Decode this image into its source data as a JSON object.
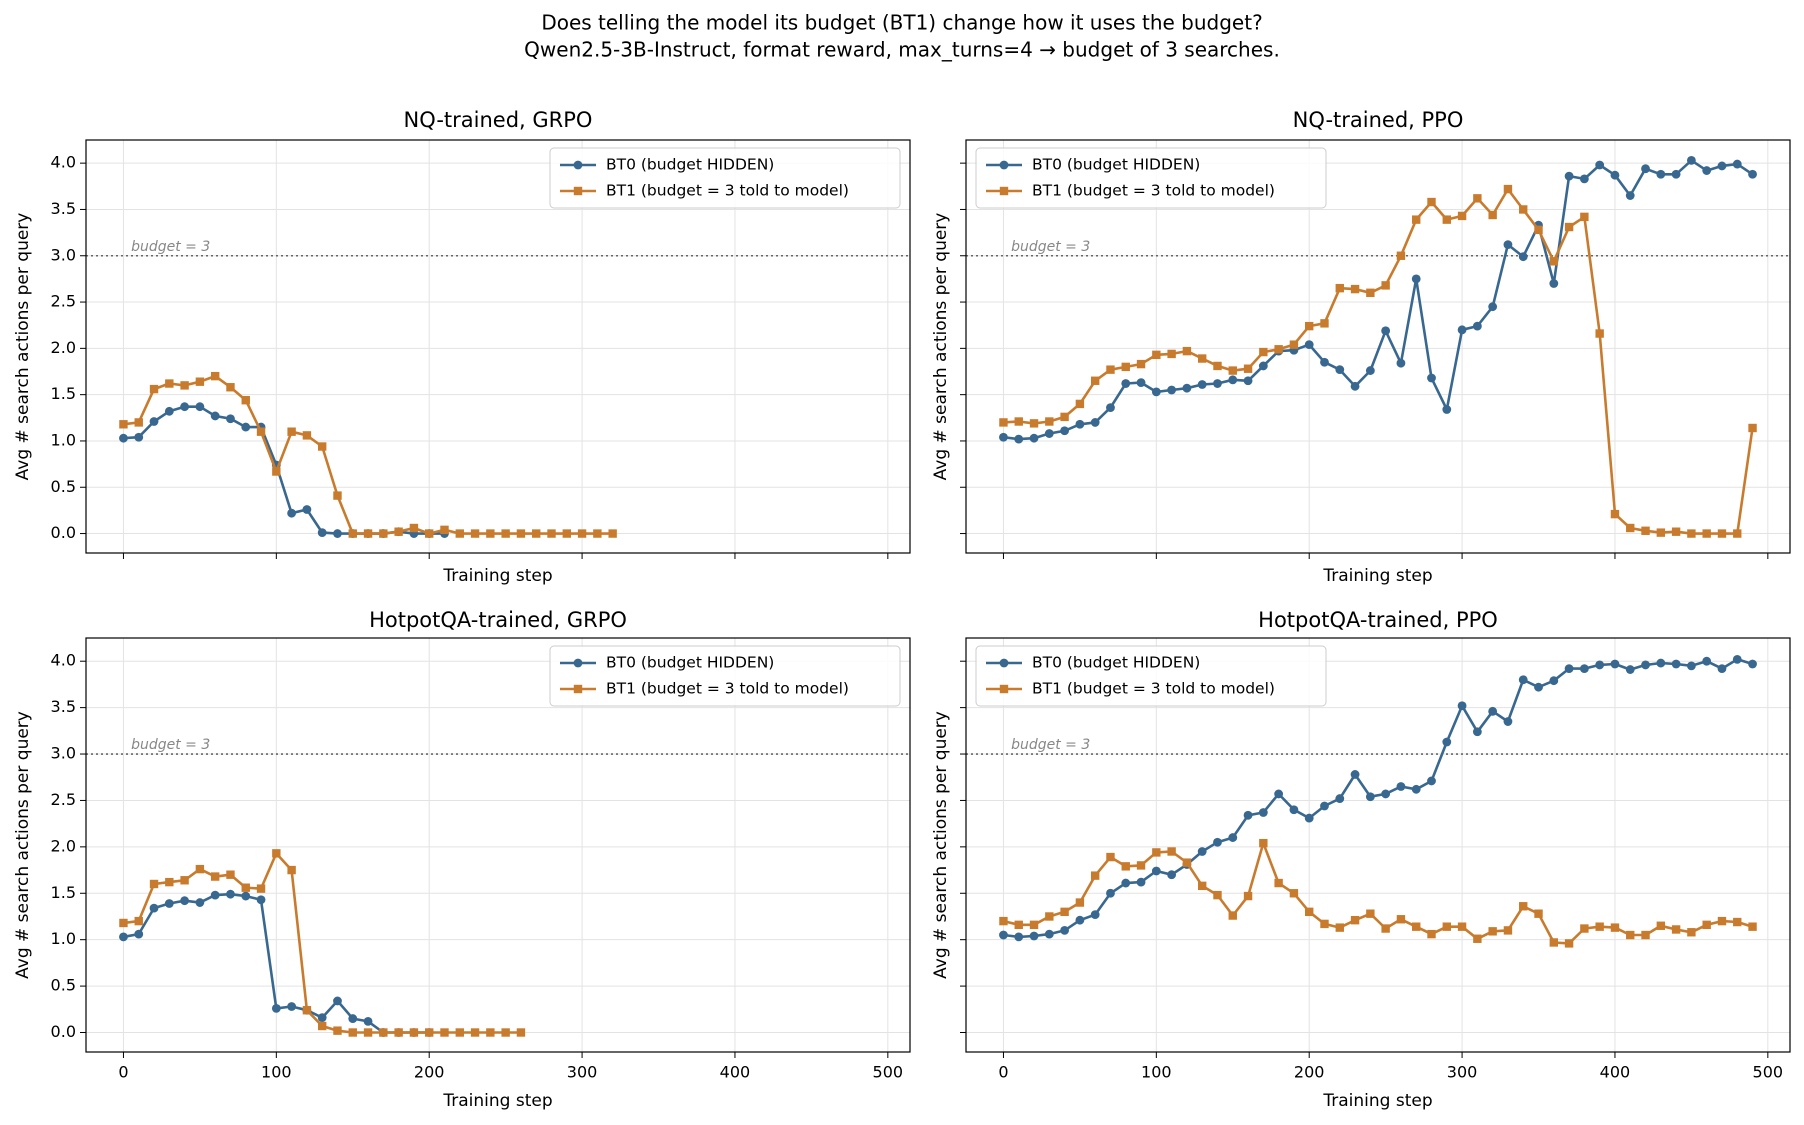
{
  "suptitle": [
    "Does telling the model its budget (BT1) change how it uses the budget?",
    "Qwen2.5-3B-Instruct, format reward, max_turns=4 → budget of 3 searches."
  ],
  "chart_data": [
    {
      "type": "line",
      "title": "NQ-trained, GRPO",
      "x_label": "Training step",
      "y_label": "Avg # search actions per query",
      "xlim": [
        -24.5,
        514.5
      ],
      "ylim": [
        -0.21,
        4.25
      ],
      "xticks": [
        0,
        100,
        200,
        300,
        400,
        500
      ],
      "yticks": [
        {
          "value": 0,
          "label": "0.0"
        },
        {
          "value": 0.5,
          "label": "0.5"
        },
        {
          "value": 1,
          "label": "1.0"
        },
        {
          "value": 1.5,
          "label": "1.5"
        },
        {
          "value": 2,
          "label": "2.0"
        },
        {
          "value": 2.5,
          "label": "2.5"
        },
        {
          "value": 3,
          "label": "3.0"
        },
        {
          "value": 3.5,
          "label": "3.5"
        },
        {
          "value": 4,
          "label": "4.0"
        }
      ],
      "show_xtick_labels": false,
      "show_ytick_labels": true,
      "grid": true,
      "legend": "upper right",
      "hline": 3,
      "annotation": "budget = 3",
      "series": [
        {
          "name": "BT0 (budget HIDDEN)",
          "color": "#386890",
          "marker": "circle",
          "x": [
            0,
            10,
            20,
            30,
            40,
            50,
            60,
            70,
            80,
            90,
            100,
            110,
            120,
            130,
            140,
            150,
            160,
            170,
            180,
            190,
            200,
            210
          ],
          "values": [
            1.03,
            1.04,
            1.21,
            1.32,
            1.37,
            1.37,
            1.27,
            1.24,
            1.15,
            1.15,
            0.74,
            0.22,
            0.26,
            0.01,
            0,
            0,
            0,
            0,
            0.02,
            0,
            0,
            0
          ]
        },
        {
          "name": "BT1 (budget = 3 told to model)",
          "color": "#c97b2d",
          "marker": "square",
          "x": [
            0,
            10,
            20,
            30,
            40,
            50,
            60,
            70,
            80,
            90,
            100,
            110,
            120,
            130,
            140,
            150,
            160,
            170,
            180,
            190,
            200,
            210,
            220,
            230,
            240,
            250,
            260,
            270,
            280,
            290,
            300,
            310,
            320
          ],
          "values": [
            1.18,
            1.2,
            1.56,
            1.62,
            1.6,
            1.64,
            1.7,
            1.58,
            1.44,
            1.1,
            0.67,
            1.1,
            1.06,
            0.94,
            0.41,
            0,
            0,
            0,
            0.02,
            0.06,
            0,
            0.04,
            0,
            0,
            0,
            0,
            0,
            0,
            0,
            0,
            0,
            0,
            0
          ]
        }
      ]
    },
    {
      "type": "line",
      "title": "NQ-trained, PPO",
      "x_label": "Training step",
      "y_label": "Avg # search actions per query",
      "xlim": [
        -24.5,
        514.5
      ],
      "ylim": [
        -0.21,
        4.25
      ],
      "xticks": [
        0,
        100,
        200,
        300,
        400,
        500
      ],
      "yticks": [
        {
          "value": 0,
          "label": "0.0"
        },
        {
          "value": 0.5,
          "label": "0.5"
        },
        {
          "value": 1,
          "label": "1.0"
        },
        {
          "value": 1.5,
          "label": "1.5"
        },
        {
          "value": 2,
          "label": "2.0"
        },
        {
          "value": 2.5,
          "label": "2.5"
        },
        {
          "value": 3,
          "label": "3.0"
        },
        {
          "value": 3.5,
          "label": "3.5"
        },
        {
          "value": 4,
          "label": "4.0"
        }
      ],
      "show_xtick_labels": false,
      "show_ytick_labels": false,
      "grid": true,
      "legend": "upper left",
      "hline": 3,
      "annotation": "budget = 3",
      "series": [
        {
          "name": "BT0 (budget HIDDEN)",
          "color": "#386890",
          "marker": "circle",
          "x": [
            0,
            10,
            20,
            30,
            40,
            50,
            60,
            70,
            80,
            90,
            100,
            110,
            120,
            130,
            140,
            150,
            160,
            170,
            180,
            190,
            200,
            210,
            220,
            230,
            240,
            250,
            260,
            270,
            280,
            290,
            300,
            310,
            320,
            330,
            340,
            350,
            360,
            370,
            380,
            390,
            400,
            410,
            420,
            430,
            440,
            450,
            460,
            470,
            480,
            490
          ],
          "values": [
            1.04,
            1.02,
            1.03,
            1.08,
            1.11,
            1.18,
            1.2,
            1.36,
            1.62,
            1.63,
            1.53,
            1.55,
            1.57,
            1.61,
            1.62,
            1.66,
            1.65,
            1.81,
            1.97,
            1.98,
            2.04,
            1.85,
            1.77,
            1.59,
            1.76,
            2.19,
            1.84,
            2.75,
            1.68,
            1.34,
            2.2,
            2.24,
            2.45,
            3.12,
            2.99,
            3.33,
            2.7,
            3.86,
            3.83,
            3.98,
            3.87,
            3.65,
            3.94,
            3.88,
            3.88,
            4.03,
            3.92,
            3.97,
            3.99,
            3.88
          ]
        },
        {
          "name": "BT1 (budget = 3 told to model)",
          "color": "#c97b2d",
          "marker": "square",
          "x": [
            0,
            10,
            20,
            30,
            40,
            50,
            60,
            70,
            80,
            90,
            100,
            110,
            120,
            130,
            140,
            150,
            160,
            170,
            180,
            190,
            200,
            210,
            220,
            230,
            240,
            250,
            260,
            270,
            280,
            290,
            300,
            310,
            320,
            330,
            340,
            350,
            360,
            370,
            380,
            390,
            400,
            410,
            420,
            430,
            440,
            450,
            460,
            470,
            480,
            490
          ],
          "values": [
            1.2,
            1.21,
            1.19,
            1.21,
            1.26,
            1.4,
            1.65,
            1.77,
            1.8,
            1.83,
            1.93,
            1.94,
            1.97,
            1.89,
            1.81,
            1.76,
            1.78,
            1.96,
            1.99,
            2.04,
            2.24,
            2.27,
            2.65,
            2.64,
            2.6,
            2.68,
            3.0,
            3.39,
            3.58,
            3.39,
            3.43,
            3.62,
            3.44,
            3.72,
            3.5,
            3.28,
            2.94,
            3.31,
            3.42,
            2.16,
            0.21,
            0.06,
            0.03,
            0.01,
            0.02,
            0,
            0,
            0,
            0,
            1.14
          ]
        }
      ]
    },
    {
      "type": "line",
      "title": "HotpotQA-trained, GRPO",
      "x_label": "Training step",
      "y_label": "Avg # search actions per query",
      "xlim": [
        -24.5,
        514.5
      ],
      "ylim": [
        -0.21,
        4.25
      ],
      "xticks": [
        0,
        100,
        200,
        300,
        400,
        500
      ],
      "yticks": [
        {
          "value": 0,
          "label": "0.0"
        },
        {
          "value": 0.5,
          "label": "0.5"
        },
        {
          "value": 1,
          "label": "1.0"
        },
        {
          "value": 1.5,
          "label": "1.5"
        },
        {
          "value": 2,
          "label": "2.0"
        },
        {
          "value": 2.5,
          "label": "2.5"
        },
        {
          "value": 3,
          "label": "3.0"
        },
        {
          "value": 3.5,
          "label": "3.5"
        },
        {
          "value": 4,
          "label": "4.0"
        }
      ],
      "show_xtick_labels": true,
      "show_ytick_labels": true,
      "grid": true,
      "legend": "upper right",
      "hline": 3,
      "annotation": "budget = 3",
      "series": [
        {
          "name": "BT0 (budget HIDDEN)",
          "color": "#386890",
          "marker": "circle",
          "x": [
            0,
            10,
            20,
            30,
            40,
            50,
            60,
            70,
            80,
            90,
            100,
            110,
            120,
            130,
            140,
            150,
            160,
            170,
            180,
            190,
            200
          ],
          "values": [
            1.03,
            1.06,
            1.34,
            1.39,
            1.42,
            1.4,
            1.48,
            1.49,
            1.47,
            1.43,
            0.26,
            0.28,
            0.24,
            0.16,
            0.34,
            0.15,
            0.12,
            0,
            0,
            0,
            0
          ]
        },
        {
          "name": "BT1 (budget = 3 told to model)",
          "color": "#c97b2d",
          "marker": "square",
          "x": [
            0,
            10,
            20,
            30,
            40,
            50,
            60,
            70,
            80,
            90,
            100,
            110,
            120,
            130,
            140,
            150,
            160,
            170,
            180,
            190,
            200,
            210,
            220,
            230,
            240,
            250,
            260
          ],
          "values": [
            1.18,
            1.2,
            1.6,
            1.62,
            1.64,
            1.76,
            1.68,
            1.7,
            1.56,
            1.55,
            1.93,
            1.75,
            0.24,
            0.07,
            0.02,
            0,
            0,
            0,
            0,
            0,
            0,
            0,
            0,
            0,
            0,
            0,
            0
          ]
        }
      ]
    },
    {
      "type": "line",
      "title": "HotpotQA-trained, PPO",
      "x_label": "Training step",
      "y_label": "Avg # search actions per query",
      "xlim": [
        -24.5,
        514.5
      ],
      "ylim": [
        -0.21,
        4.25
      ],
      "xticks": [
        0,
        100,
        200,
        300,
        400,
        500
      ],
      "yticks": [
        {
          "value": 0,
          "label": "0.0"
        },
        {
          "value": 0.5,
          "label": "0.5"
        },
        {
          "value": 1,
          "label": "1.0"
        },
        {
          "value": 1.5,
          "label": "1.5"
        },
        {
          "value": 2,
          "label": "2.0"
        },
        {
          "value": 2.5,
          "label": "2.5"
        },
        {
          "value": 3,
          "label": "3.0"
        },
        {
          "value": 3.5,
          "label": "3.5"
        },
        {
          "value": 4,
          "label": "4.0"
        }
      ],
      "show_xtick_labels": true,
      "show_ytick_labels": false,
      "grid": true,
      "legend": "upper left",
      "hline": 3,
      "annotation": "budget = 3",
      "series": [
        {
          "name": "BT0 (budget HIDDEN)",
          "color": "#386890",
          "marker": "circle",
          "x": [
            0,
            10,
            20,
            30,
            40,
            50,
            60,
            70,
            80,
            90,
            100,
            110,
            120,
            130,
            140,
            150,
            160,
            170,
            180,
            190,
            200,
            210,
            220,
            230,
            240,
            250,
            260,
            270,
            280,
            290,
            300,
            310,
            320,
            330,
            340,
            350,
            360,
            370,
            380,
            390,
            400,
            410,
            420,
            430,
            440,
            450,
            460,
            470,
            480,
            490
          ],
          "values": [
            1.05,
            1.03,
            1.04,
            1.06,
            1.1,
            1.21,
            1.27,
            1.5,
            1.61,
            1.62,
            1.74,
            1.7,
            1.81,
            1.95,
            2.05,
            2.1,
            2.34,
            2.37,
            2.57,
            2.4,
            2.31,
            2.44,
            2.52,
            2.78,
            2.54,
            2.57,
            2.65,
            2.62,
            2.71,
            3.13,
            3.52,
            3.24,
            3.46,
            3.35,
            3.8,
            3.72,
            3.79,
            3.92,
            3.92,
            3.96,
            3.97,
            3.91,
            3.96,
            3.98,
            3.97,
            3.95,
            4.0,
            3.92,
            4.02,
            3.97
          ]
        },
        {
          "name": "BT1 (budget = 3 told to model)",
          "color": "#c97b2d",
          "marker": "square",
          "x": [
            0,
            10,
            20,
            30,
            40,
            50,
            60,
            70,
            80,
            90,
            100,
            110,
            120,
            130,
            140,
            150,
            160,
            170,
            180,
            190,
            200,
            210,
            220,
            230,
            240,
            250,
            260,
            270,
            280,
            290,
            300,
            310,
            320,
            330,
            340,
            350,
            360,
            370,
            380,
            390,
            400,
            410,
            420,
            430,
            440,
            450,
            460,
            470,
            480,
            490
          ],
          "values": [
            1.2,
            1.16,
            1.16,
            1.25,
            1.3,
            1.4,
            1.69,
            1.89,
            1.79,
            1.8,
            1.94,
            1.95,
            1.83,
            1.58,
            1.48,
            1.26,
            1.47,
            2.04,
            1.61,
            1.5,
            1.3,
            1.17,
            1.13,
            1.21,
            1.28,
            1.12,
            1.22,
            1.14,
            1.06,
            1.14,
            1.14,
            1.01,
            1.09,
            1.1,
            1.36,
            1.28,
            0.97,
            0.96,
            1.12,
            1.14,
            1.13,
            1.05,
            1.05,
            1.15,
            1.11,
            1.08,
            1.16,
            1.2,
            1.19,
            1.14
          ]
        }
      ]
    }
  ]
}
